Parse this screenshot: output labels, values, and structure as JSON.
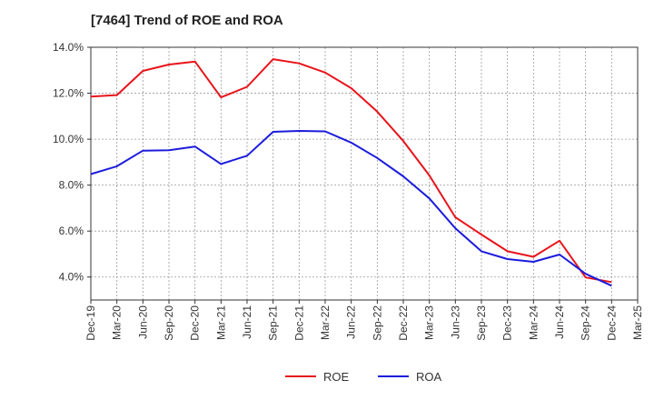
{
  "chart_data": {
    "type": "line",
    "title": "[7464]  Trend of ROE and ROA",
    "xlabel": "",
    "ylabel": "",
    "x": [
      "Dec-19",
      "Mar-20",
      "Jun-20",
      "Sep-20",
      "Dec-20",
      "Mar-21",
      "Jun-21",
      "Sep-21",
      "Dec-21",
      "Mar-22",
      "Jun-22",
      "Sep-22",
      "Dec-22",
      "Mar-23",
      "Jun-23",
      "Sep-23",
      "Dec-23",
      "Mar-24",
      "Jun-24",
      "Sep-24",
      "Dec-24",
      "Mar-25"
    ],
    "ylim": [
      3.0,
      14.0
    ],
    "yticks": [
      4.0,
      6.0,
      8.0,
      10.0,
      12.0,
      14.0
    ],
    "ytick_labels": [
      "4.0%",
      "6.0%",
      "8.0%",
      "10.0%",
      "12.0%",
      "14.0%"
    ],
    "grid": true,
    "legend_position": "bottom-center",
    "series": [
      {
        "name": "ROE",
        "color": "#e8141b",
        "values": [
          11.85,
          11.92,
          12.97,
          13.25,
          13.38,
          11.82,
          12.28,
          13.48,
          13.3,
          12.9,
          12.22,
          11.2,
          9.92,
          8.42,
          6.6,
          5.85,
          5.12,
          4.88,
          5.58,
          3.98,
          3.78,
          null
        ]
      },
      {
        "name": "ROA",
        "color": "#1c1cdc",
        "values": [
          8.48,
          8.82,
          9.5,
          9.52,
          9.68,
          8.92,
          9.28,
          10.32,
          10.36,
          10.34,
          9.85,
          9.18,
          8.38,
          7.42,
          6.12,
          5.12,
          4.78,
          4.66,
          4.98,
          4.14,
          3.62,
          null
        ]
      }
    ]
  }
}
